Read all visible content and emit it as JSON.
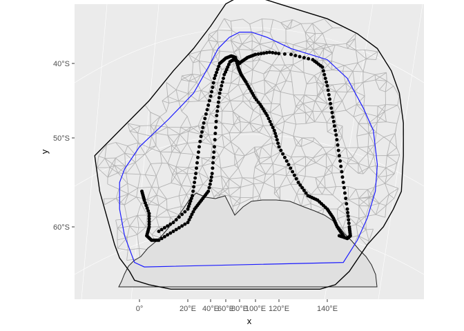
{
  "chart_data": {
    "type": "scatter",
    "title": "",
    "xlabel": "x",
    "ylabel": "y",
    "x_ticks": [
      "0°",
      "20°E",
      "40°E",
      "60°E",
      "80°E",
      "100°E",
      "120°E",
      "140°E"
    ],
    "y_ticks": [
      "40°S",
      "50°S",
      "60°S"
    ],
    "grid": true,
    "legend": "none",
    "colors": {
      "panel_background": "#ebebeb",
      "grid": "#ffffff",
      "land_fill": "#e0e0e0",
      "coastline": "#222222",
      "mesh": "#b3b3b3",
      "inner_boundary": "#1a1aff",
      "outer_boundary": "#000000",
      "points": "#000000"
    },
    "outer_boundary": [
      [
        -18,
        52
      ],
      [
        -17,
        54
      ],
      [
        -16,
        56
      ],
      [
        -14,
        58
      ],
      [
        -12,
        60
      ],
      [
        -10,
        62
      ],
      [
        -8,
        63.5
      ],
      [
        -4,
        65
      ],
      [
        -2,
        66
      ],
      [
        4,
        66.5
      ],
      [
        13,
        67
      ],
      [
        28,
        67
      ],
      [
        48,
        67
      ],
      [
        62,
        67
      ],
      [
        82,
        67
      ],
      [
        102,
        67
      ],
      [
        117,
        67
      ],
      [
        122,
        67
      ],
      [
        137,
        67
      ],
      [
        144,
        66.5
      ],
      [
        151,
        65
      ],
      [
        160,
        62
      ],
      [
        168,
        60
      ],
      [
        173,
        58
      ],
      [
        177,
        56
      ],
      [
        178,
        52
      ],
      [
        178,
        48
      ],
      [
        176,
        44
      ],
      [
        172,
        41
      ],
      [
        165,
        38
      ],
      [
        155,
        36
      ],
      [
        140,
        34
      ],
      [
        120,
        32
      ],
      [
        100,
        31
      ],
      [
        80,
        31
      ],
      [
        60,
        32
      ],
      [
        40,
        35
      ],
      [
        25,
        38
      ],
      [
        14,
        41
      ],
      [
        4,
        45
      ],
      [
        -8,
        49
      ],
      [
        -18,
        52
      ]
    ],
    "inner_boundary": [
      [
        -8,
        55
      ],
      [
        -8,
        58
      ],
      [
        -6,
        61
      ],
      [
        -2,
        64
      ],
      [
        2,
        64.5
      ],
      [
        148,
        64
      ],
      [
        155,
        61.5
      ],
      [
        160,
        59
      ],
      [
        164,
        56
      ],
      [
        165,
        53
      ],
      [
        163,
        49
      ],
      [
        158,
        46
      ],
      [
        150,
        42
      ],
      [
        140,
        39.5
      ],
      [
        125,
        38
      ],
      [
        110,
        36.5
      ],
      [
        95,
        35.8
      ],
      [
        80,
        35.8
      ],
      [
        65,
        36.5
      ],
      [
        50,
        38
      ],
      [
        38,
        40.5
      ],
      [
        25,
        44
      ],
      [
        12,
        47.5
      ],
      [
        0,
        51
      ],
      [
        -6,
        53.5
      ],
      [
        -8,
        55
      ]
    ],
    "track_a": [
      [
        1,
        56
      ],
      [
        2,
        57
      ],
      [
        4,
        58.5
      ],
      [
        4,
        60
      ],
      [
        3,
        61
      ],
      [
        5,
        61.5
      ],
      [
        8,
        61.5
      ],
      [
        14,
        60.5
      ],
      [
        20,
        59.5
      ],
      [
        26,
        58
      ],
      [
        32,
        57
      ],
      [
        38,
        56
      ],
      [
        42,
        54
      ],
      [
        45,
        51
      ],
      [
        48,
        47
      ],
      [
        52,
        44
      ],
      [
        58,
        41.5
      ],
      [
        66,
        39.8
      ],
      [
        71,
        39.5
      ],
      [
        75,
        39.6
      ],
      [
        78,
        39.8
      ],
      [
        80,
        40
      ]
    ],
    "track_b": [
      [
        82,
        39.8
      ],
      [
        90,
        39.2
      ],
      [
        100,
        38.8
      ],
      [
        112,
        38.5
      ],
      [
        125,
        38.8
      ],
      [
        134,
        39.5
      ],
      [
        138,
        40.5
      ],
      [
        140,
        43
      ],
      [
        142,
        46
      ],
      [
        144,
        49
      ],
      [
        146,
        52
      ],
      [
        148,
        55
      ],
      [
        150,
        58
      ],
      [
        151,
        60
      ],
      [
        151.5,
        61
      ],
      [
        150,
        61.3
      ],
      [
        146,
        61
      ]
    ],
    "track_c": [
      [
        8,
        60.5
      ],
      [
        14,
        59.5
      ],
      [
        20,
        58
      ],
      [
        24,
        56.5
      ],
      [
        27,
        54
      ],
      [
        30,
        51
      ],
      [
        34,
        48
      ],
      [
        39,
        45
      ],
      [
        45,
        42
      ],
      [
        52,
        40
      ],
      [
        60,
        39.3
      ],
      [
        68,
        39
      ],
      [
        74,
        39.2
      ],
      [
        78,
        40.5
      ],
      [
        82,
        41.5
      ],
      [
        88,
        42.5
      ],
      [
        96,
        44
      ],
      [
        104,
        45.5
      ],
      [
        110,
        47
      ],
      [
        116,
        49
      ],
      [
        120,
        51
      ],
      [
        124,
        53
      ],
      [
        128,
        55
      ],
      [
        132,
        56.5
      ],
      [
        136,
        57
      ],
      [
        140,
        58
      ],
      [
        143,
        59
      ],
      [
        145,
        60
      ],
      [
        148,
        61
      ]
    ]
  }
}
